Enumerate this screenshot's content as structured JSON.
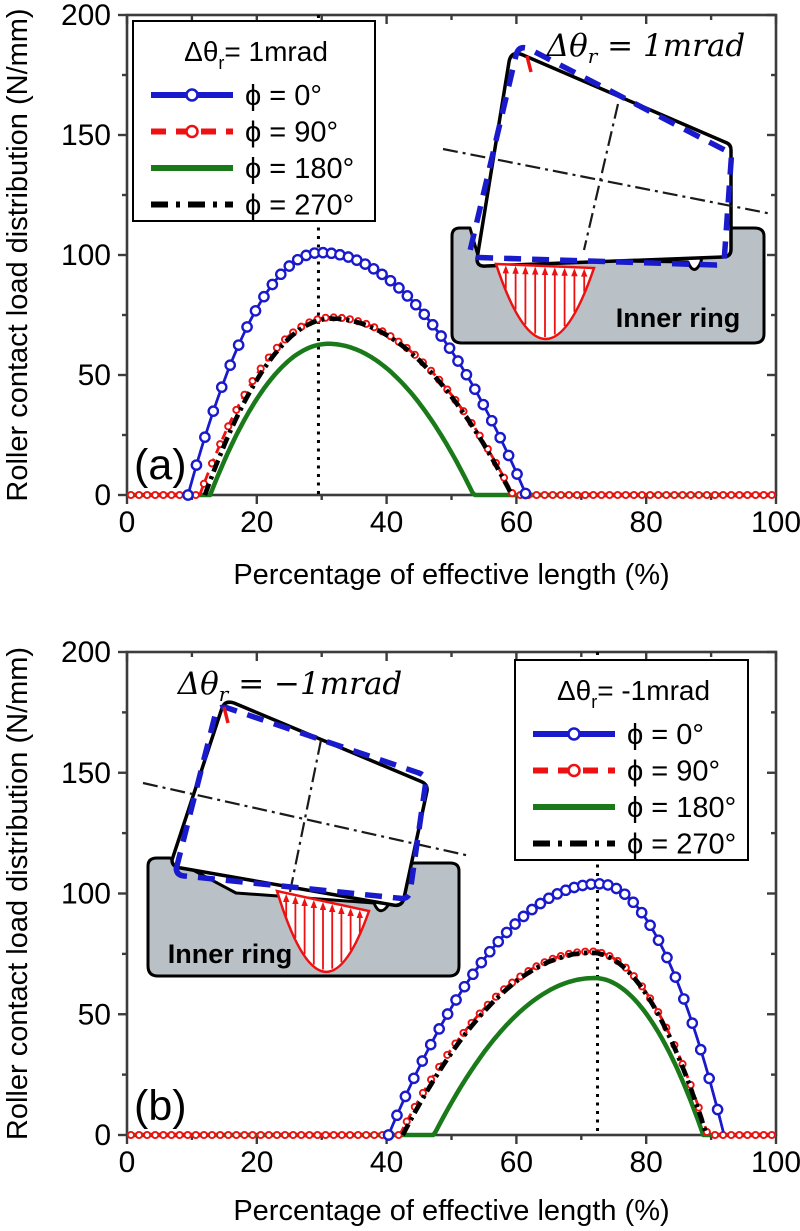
{
  "chart_data": [
    {
      "id": "a",
      "type": "line",
      "panel_label": "(a)",
      "xlabel": "Percentage of effective length (%)",
      "ylabel": "Roller contact load distribution (N/mm)",
      "xlim": [
        0,
        100
      ],
      "ylim": [
        0,
        200
      ],
      "x_ticks_major": [
        0,
        20,
        40,
        60,
        80,
        100
      ],
      "x_ticks_minor": [
        10,
        30,
        50,
        70,
        90
      ],
      "y_ticks_major": [
        0,
        50,
        100,
        150,
        200
      ],
      "y_ticks_minor": [
        25,
        75,
        125,
        175
      ],
      "grid": false,
      "guide_x": 29.5,
      "legend": {
        "position": "upper-left",
        "title_base": "Δθ",
        "title_sub": "r",
        "title_rest": "= 1mrad"
      },
      "inset": {
        "title_base": "Δθ",
        "title_sub": "r",
        "title_rest": " = 1mrad",
        "ring_label": "Inner ring",
        "contact_side": "left"
      },
      "sample_x": [
        0,
        5,
        10,
        15,
        20,
        25,
        30,
        35,
        40,
        45,
        50,
        55,
        60,
        65,
        70,
        75,
        80,
        85,
        90,
        95,
        100
      ],
      "series": [
        {
          "name": "phi-0",
          "label": "ϕ = 0°",
          "color": "#1a1acd",
          "line": "solid",
          "marker": "open-circle",
          "model": {
            "start_x": 9.4,
            "peak_x": 29.8,
            "peak": 101,
            "end_x": 61.5
          },
          "sample_y": [
            0,
            0,
            5.9,
            47.8,
            77.7,
            95.4,
            101,
            98.3,
            90.5,
            77.8,
            60,
            37.2,
            9.3,
            0,
            0,
            0,
            0,
            0,
            0,
            0,
            0
          ]
        },
        {
          "name": "phi-90",
          "label": "ϕ = 90°",
          "color": "#ee1111",
          "line": "dashed",
          "marker": "open-circle",
          "model": {
            "start_x": 11.2,
            "peak_x": 31.5,
            "peak": 74,
            "end_x": 59.5
          },
          "sample_y": [
            0,
            0,
            0,
            25.1,
            50.3,
            66.4,
            73.6,
            72.8,
            67.2,
            56.8,
            41.7,
            21.9,
            0,
            0,
            0,
            0,
            0,
            0,
            0,
            0,
            0
          ]
        },
        {
          "name": "phi-180",
          "label": "ϕ = 180°",
          "color": "#1a7a1a",
          "line": "solid",
          "marker": "none",
          "model": {
            "start_x": 12.8,
            "peak_x": 31,
            "peak": 63,
            "end_x": 53.4
          },
          "sample_y": [
            0,
            0,
            0,
            14.3,
            40,
            56.2,
            62.8,
            61,
            52.8,
            38.4,
            17.7,
            0,
            0,
            0,
            0,
            0,
            0,
            0,
            0,
            0,
            0
          ]
        },
        {
          "name": "phi-270",
          "label": "ϕ = 270°",
          "color": "#000000",
          "line": "dash-dot",
          "marker": "none",
          "model": {
            "start_x": 12,
            "peak_x": 31.5,
            "peak": 73.5,
            "end_x": 59.3
          },
          "sample_y": [
            0,
            0,
            0,
            20.9,
            47.9,
            65.3,
            73.1,
            72.3,
            66.6,
            56.2,
            41,
            21,
            0,
            0,
            0,
            0,
            0,
            0,
            0,
            0,
            0
          ]
        }
      ]
    },
    {
      "id": "b",
      "type": "line",
      "panel_label": "(b)",
      "xlabel": "Percentage of effective length (%)",
      "ylabel": "Roller contact load distribution (N/mm)",
      "xlim": [
        0,
        100
      ],
      "ylim": [
        0,
        200
      ],
      "x_ticks_major": [
        0,
        20,
        40,
        60,
        80,
        100
      ],
      "x_ticks_minor": [
        10,
        30,
        50,
        70,
        90
      ],
      "y_ticks_major": [
        0,
        50,
        100,
        150,
        200
      ],
      "y_ticks_minor": [
        25,
        75,
        125,
        175
      ],
      "grid": false,
      "guide_x": 72.5,
      "legend": {
        "position": "upper-right",
        "title_base": "Δθ",
        "title_sub": "r",
        "title_rest": "= -1mrad"
      },
      "inset": {
        "title_base": "Δθ",
        "title_sub": "r",
        "title_rest": " = −1mrad",
        "ring_label": "Inner ring",
        "contact_side": "right"
      },
      "sample_x": [
        0,
        5,
        10,
        15,
        20,
        25,
        30,
        35,
        40,
        45,
        50,
        55,
        60,
        65,
        70,
        75,
        80,
        85,
        90,
        95,
        100
      ],
      "series": [
        {
          "name": "phi-0",
          "label": "ϕ = 0°",
          "color": "#1a1acd",
          "line": "solid",
          "marker": "open-circle",
          "model": {
            "start_x": 40.3,
            "peak_x": 72.8,
            "peak": 104,
            "end_x": 92
          },
          "sample_y": [
            0,
            0,
            0,
            0,
            0,
            0,
            0,
            0,
            0,
            27.9,
            52.8,
            72.8,
            87.9,
            98,
            103.2,
            102.7,
            90.3,
            64.5,
            25.5,
            0,
            0
          ]
        },
        {
          "name": "phi-90",
          "label": "ϕ = 90°",
          "color": "#ee1111",
          "line": "dashed",
          "marker": "open-circle",
          "model": {
            "start_x": 42,
            "peak_x": 71.5,
            "peak": 76,
            "end_x": 89.5
          },
          "sample_y": [
            0,
            0,
            0,
            0,
            0,
            0,
            0,
            0,
            0,
            14.7,
            35.6,
            52.2,
            64.4,
            72.3,
            75.8,
            73.3,
            60,
            35.5,
            0,
            0,
            0
          ]
        },
        {
          "name": "phi-180",
          "label": "ϕ = 180°",
          "color": "#1a7a1a",
          "line": "solid",
          "marker": "none",
          "model": {
            "start_x": 47.3,
            "peak_x": 72,
            "peak": 65,
            "end_x": 88.8
          },
          "sample_y": [
            0,
            0,
            0,
            0,
            0,
            0,
            0,
            0,
            0,
            0,
            13.4,
            34.2,
            49.7,
            59.8,
            64.6,
            63,
            50.6,
            27,
            0,
            0,
            0
          ]
        },
        {
          "name": "phi-270",
          "label": "ϕ = 270°",
          "color": "#000000",
          "line": "dash-dot",
          "marker": "none",
          "model": {
            "start_x": 42.5,
            "peak_x": 71.5,
            "peak": 75.5,
            "end_x": 89.3
          },
          "sample_y": [
            0,
            0,
            0,
            0,
            0,
            0,
            0,
            0,
            0,
            12.5,
            34,
            51.1,
            63.6,
            71.7,
            75.3,
            72.7,
            59,
            34,
            0,
            0,
            0
          ]
        }
      ]
    }
  ],
  "style": {
    "frame_color": "#3c3c3c",
    "guide_color": "#000000",
    "ring_fill": "#b9c0c6",
    "blue": "#1a1acd",
    "red": "#ee1111",
    "green": "#1a7a1a",
    "black": "#000000"
  }
}
